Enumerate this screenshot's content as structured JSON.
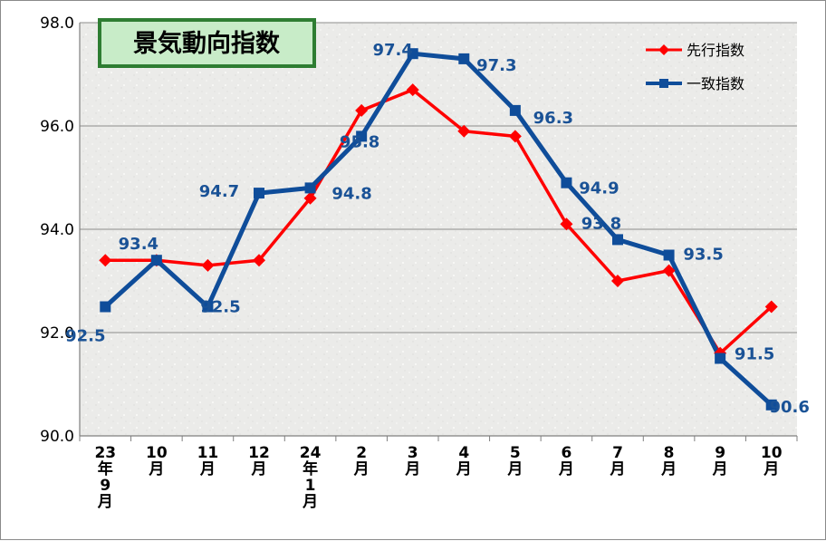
{
  "chart_data": {
    "type": "line",
    "title": "景気動向指数",
    "categories": [
      [
        "23年",
        "9月"
      ],
      [
        "10月"
      ],
      [
        "11月"
      ],
      [
        "12月"
      ],
      [
        "24年",
        "1月"
      ],
      [
        "2月"
      ],
      [
        "3月"
      ],
      [
        "4月"
      ],
      [
        "5月"
      ],
      [
        "6月"
      ],
      [
        "7月"
      ],
      [
        "8月"
      ],
      [
        "9月"
      ],
      [
        "10月"
      ]
    ],
    "ylim": [
      90.0,
      98.0
    ],
    "yticks": [
      "90.0",
      "92.0",
      "94.0",
      "96.0",
      "98.0"
    ],
    "grid": true,
    "legend_position": "top-right",
    "series": [
      {
        "name": "先行指数",
        "color": "#ff0000",
        "marker": "diamond",
        "values": [
          93.4,
          93.4,
          93.3,
          93.4,
          94.6,
          96.3,
          96.7,
          95.9,
          95.8,
          94.1,
          93.0,
          93.2,
          91.6,
          92.5
        ],
        "show_labels": false
      },
      {
        "name": "一致指数",
        "color": "#0f4d9a",
        "marker": "square",
        "values": [
          92.5,
          93.4,
          92.5,
          94.7,
          94.8,
          95.8,
          97.4,
          97.3,
          96.3,
          94.9,
          93.8,
          93.5,
          91.5,
          90.6
        ],
        "labels": [
          "92.5",
          "93.4",
          "92.5",
          "94.7",
          "94.8",
          "95.8",
          "97.4",
          "97.3",
          "96.3",
          "94.9",
          "93.8",
          "93.5",
          "91.5",
          "90.6"
        ],
        "show_labels": true
      }
    ]
  }
}
